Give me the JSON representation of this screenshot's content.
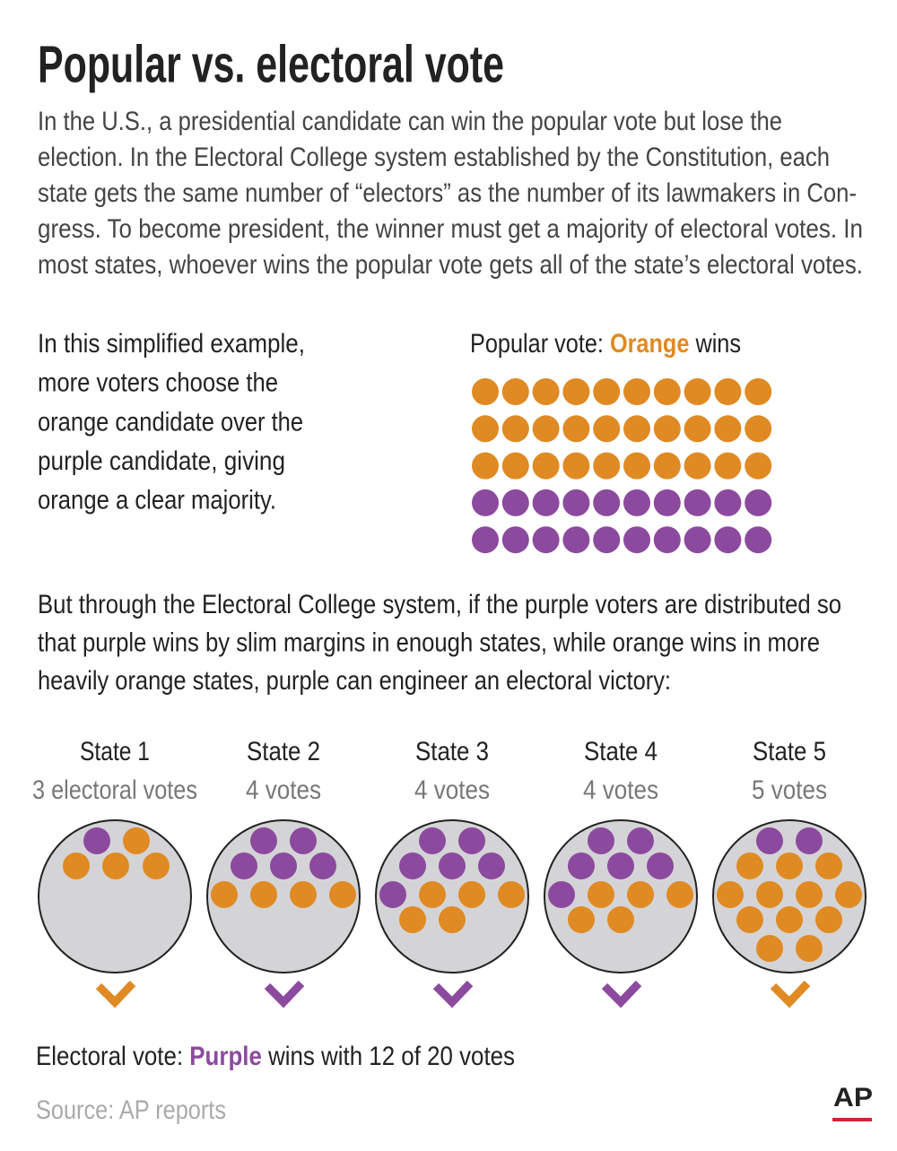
{
  "header": {
    "title": "Popular vs. electoral vote",
    "intro_lines": [
      "In the U.S., a presidential candidate can win the popular vote but lose the",
      "election. In the Electoral College system established by the Constitution, each",
      "state gets the same number of “electors” as the number of its lawmakers in Con-",
      "gress. To become  president, the winner must get a majority of electoral votes. In",
      "most states, whoever wins the popular vote gets all of the state’s electoral votes."
    ]
  },
  "example": {
    "lines": [
      "In this simplified example,",
      "more voters choose the",
      "orange candidate over the",
      "purple candidate, giving",
      "orange a clear majority."
    ]
  },
  "popular_vote": {
    "label": "Popular vote:",
    "winner": "Orange",
    "suffix": "wins"
  },
  "explanation_lines": [
    "But through the Electoral College system, if the purple voters are distributed so",
    "that purple wins by slim margins in enough states, while orange wins in more",
    "heavily orange states, purple can engineer an electoral victory:"
  ],
  "states": [
    {
      "name": "State 1",
      "votes": "3 electoral votes"
    },
    {
      "name": "State 2",
      "votes": "4 votes"
    },
    {
      "name": "State 3",
      "votes": "4 votes"
    },
    {
      "name": "State 4",
      "votes": "4 votes"
    },
    {
      "name": "State 5",
      "votes": "5 votes"
    }
  ],
  "electoral_vote": {
    "label": "Electoral vote:",
    "winner": "Purple",
    "suffix": "wins with 12 of 20 votes"
  },
  "source": "Source: AP reports",
  "logo": "AP"
}
